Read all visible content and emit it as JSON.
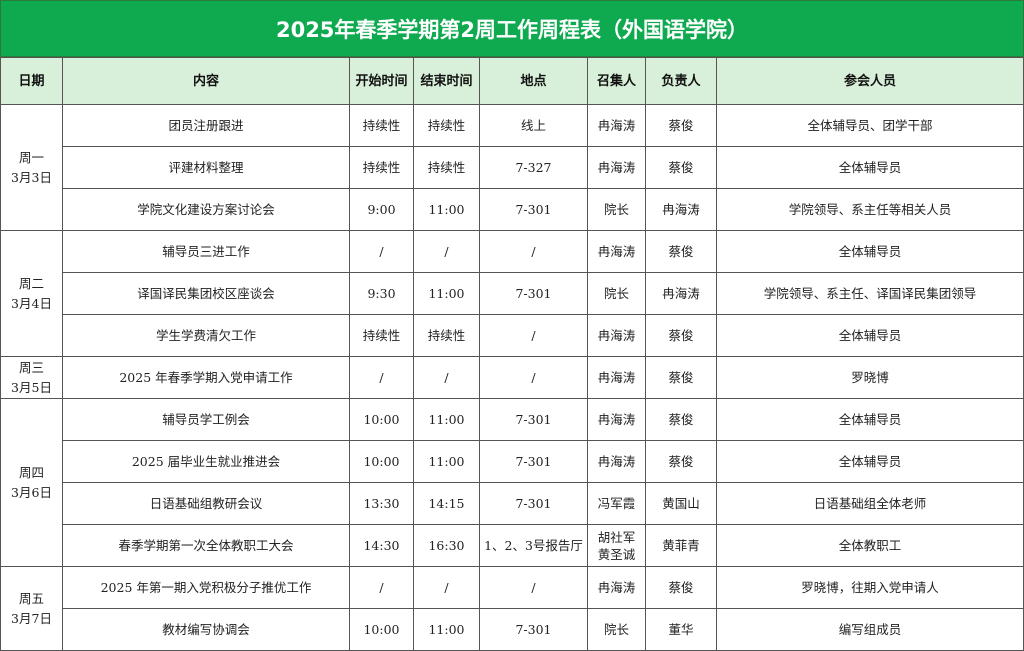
{
  "title": "2025年春季学期第2周工作周程表（外国语学院）",
  "header": [
    "日期",
    "内容",
    "开始时间",
    "结束时间",
    "地点",
    "召集人",
    "负责人",
    "参会人员"
  ],
  "days": [
    {
      "day": "周一",
      "date": "3月3日",
      "rows": [
        [
          "团员注册跟进",
          "持续性",
          "持续性",
          "线上",
          "冉海涛",
          "蔡俊",
          "全体辅导员、团学干部"
        ],
        [
          "评建材料整理",
          "持续性",
          "持续性",
          "7-327",
          "冉海涛",
          "蔡俊",
          "全体辅导员"
        ],
        [
          "学院文化建设方案讨论会",
          "9:00",
          "11:00",
          "7-301",
          "院长",
          "冉海涛",
          "学院领导、系主任等相关人员"
        ]
      ]
    },
    {
      "day": "周二",
      "date": "3月4日",
      "rows": [
        [
          "辅导员三进工作",
          "/",
          "/",
          "/",
          "冉海涛",
          "蔡俊",
          "全体辅导员"
        ],
        [
          "译国译民集团校区座谈会",
          "9:30",
          "11:00",
          "7-301",
          "院长",
          "冉海涛",
          "学院领导、系主任、译国译民集团领导"
        ],
        [
          "学生学费清欠工作",
          "持续性",
          "持续性",
          "/",
          "冉海涛",
          "蔡俊",
          "全体辅导员"
        ]
      ]
    },
    {
      "day": "周三",
      "date": "3月5日",
      "rows": [
        [
          "2025 年春季学期入党申请工作",
          "/",
          "/",
          "/",
          "冉海涛",
          "蔡俊",
          "罗晓博"
        ]
      ]
    },
    {
      "day": "周四",
      "date": "3月6日",
      "rows": [
        [
          "辅导员学工例会",
          "10:00",
          "11:00",
          "7-301",
          "冉海涛",
          "蔡俊",
          "全体辅导员"
        ],
        [
          "2025 届毕业生就业推进会",
          "10:00",
          "11:00",
          "7-301",
          "冉海涛",
          "蔡俊",
          "全体辅导员"
        ],
        [
          "日语基础组教研会议",
          "13:30",
          "14:15",
          "7-301",
          "冯军霞",
          "黄国山",
          "日语基础组全体老师"
        ],
        [
          "春季学期第一次全体教职工大会",
          "14:30",
          "16:30",
          "1、2、3号报告厅",
          "胡社军 黄圣诚",
          "黄菲青",
          "全体教职工"
        ]
      ]
    },
    {
      "day": "周五",
      "date": "3月7日",
      "rows": [
        [
          "2025 年第一期入党积极分子推优工作",
          "/",
          "/",
          "/",
          "冉海涛",
          "蔡俊",
          "罗晓博，往期入党申请人"
        ],
        [
          "教材编写协调会",
          "10:00",
          "11:00",
          "7-301",
          "院长",
          "董华",
          "编写组成员"
        ]
      ]
    }
  ]
}
